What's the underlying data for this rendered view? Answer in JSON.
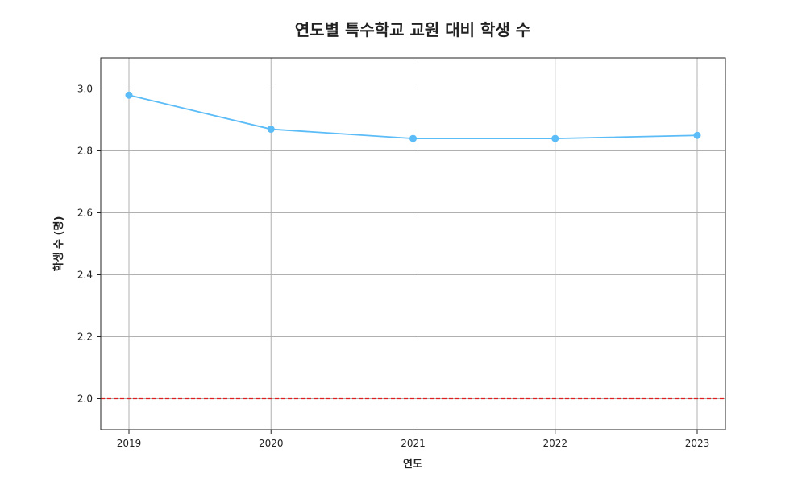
{
  "chart_data": {
    "type": "line",
    "title": "연도별 특수학교 교원 대비 학생 수",
    "xlabel": "연도",
    "ylabel": "학생 수 (명)",
    "categories": [
      "2019",
      "2020",
      "2021",
      "2022",
      "2023"
    ],
    "series": [
      {
        "values": [
          2.98,
          2.87,
          2.84,
          2.84,
          2.85
        ],
        "color": "#5bbcf7",
        "marker": "circle"
      }
    ],
    "yticks": [
      "2.0",
      "2.2",
      "2.4",
      "2.6",
      "2.8",
      "3.0"
    ],
    "ylim": [
      1.9,
      3.1
    ],
    "grid": true,
    "reference_line": {
      "y": 2.0,
      "color": "#e02020",
      "style": "dashed"
    }
  }
}
